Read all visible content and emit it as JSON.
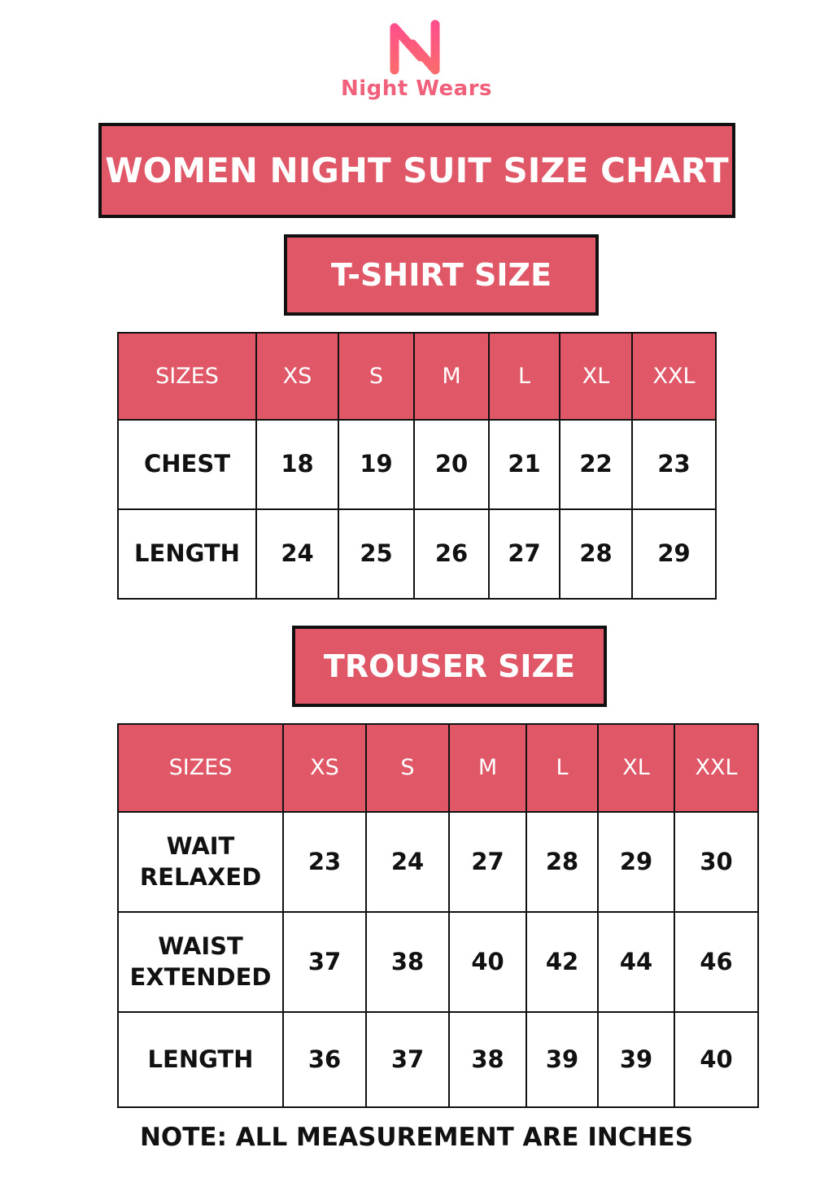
{
  "brand": {
    "name": "Night Wears",
    "color": "#f0607a"
  },
  "title": "WOMEN NIGHT SUIT SIZE CHART",
  "tshirt": {
    "heading": "T-SHIRT SIZE",
    "headers": [
      "SIZES",
      "XS",
      "S",
      "M",
      "L",
      "XL",
      "XXL"
    ],
    "rows": [
      {
        "label": "CHEST",
        "values": [
          "18",
          "19",
          "20",
          "21",
          "22",
          "23"
        ]
      },
      {
        "label": "LENGTH",
        "values": [
          "24",
          "25",
          "26",
          "27",
          "28",
          "29"
        ]
      }
    ]
  },
  "trouser": {
    "heading": "TROUSER SIZE",
    "headers": [
      "SIZES",
      "XS",
      "S",
      "M",
      "L",
      "XL",
      "XXL"
    ],
    "rows": [
      {
        "label_line1": "WAIT",
        "label_line2": "RELAXED",
        "values": [
          "23",
          "24",
          "27",
          "28",
          "29",
          "30"
        ]
      },
      {
        "label_line1": "WAIST",
        "label_line2": "EXTENDED",
        "values": [
          "37",
          "38",
          "40",
          "42",
          "44",
          "46"
        ]
      },
      {
        "label_line1": "LENGTH",
        "label_line2": "",
        "values": [
          "36",
          "37",
          "38",
          "39",
          "39",
          "40"
        ]
      }
    ]
  },
  "note": "NOTE: ALL MEASUREMENT ARE INCHES",
  "colors": {
    "header_fill": "#e05767",
    "border": "#111111"
  }
}
